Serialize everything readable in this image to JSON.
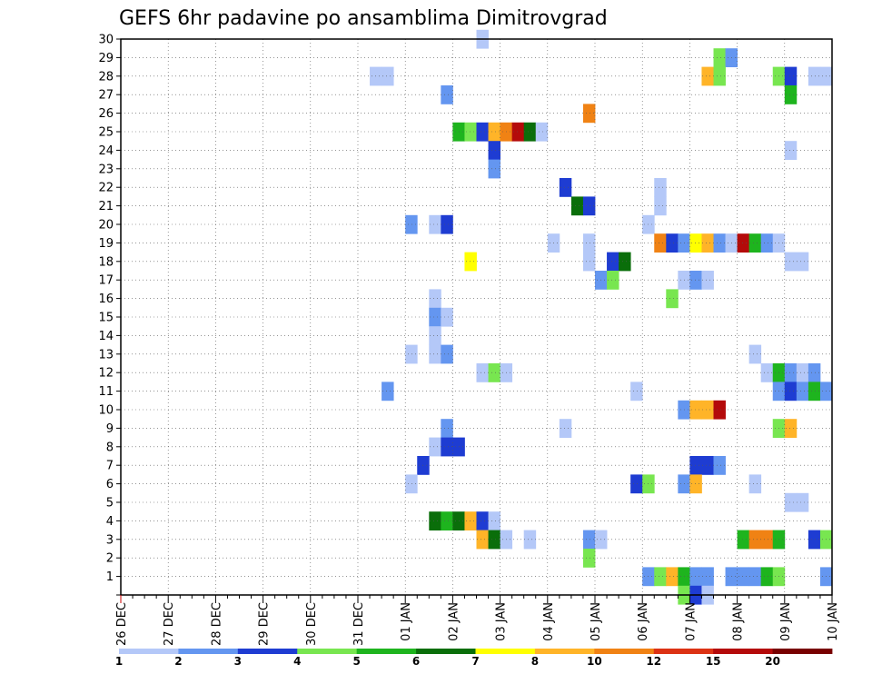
{
  "chart_data": {
    "type": "heatmap",
    "title": "GEFS 6hr padavine po ansamblima Dimitrovgrad",
    "xlabel": "",
    "ylabel": "",
    "x_tick_labels": [
      "26 DEC",
      "27 DEC",
      "28 DEC",
      "29 DEC",
      "30 DEC",
      "31 DEC",
      "01 JAN",
      "02 JAN",
      "03 JAN",
      "04 JAN",
      "05 JAN",
      "06 JAN",
      "07 JAN",
      "08 JAN",
      "09 JAN",
      "10 JAN"
    ],
    "y_tick_labels": [
      "1",
      "2",
      "3",
      "4",
      "5",
      "6",
      "7",
      "8",
      "9",
      "10",
      "11",
      "12",
      "13",
      "14",
      "15",
      "16",
      "17",
      "18",
      "19",
      "20",
      "21",
      "22",
      "23",
      "24",
      "25",
      "26",
      "27",
      "28",
      "29",
      "30"
    ],
    "xlim_steps": [
      0,
      60
    ],
    "ylim": [
      0,
      30
    ],
    "grid": true,
    "colorbar": {
      "labels": [
        "1",
        "2",
        "3",
        "4",
        "5",
        "6",
        "7",
        "8",
        "10",
        "12",
        "15",
        "20"
      ],
      "colors": [
        "#b4c8f8",
        "#6496f0",
        "#1e3cd2",
        "#78e650",
        "#1eb41e",
        "#0a6e0a",
        "#ffff00",
        "#ffb428",
        "#f08214",
        "#dc3214",
        "#b40a0a",
        "#780000"
      ]
    },
    "cells_format": "[ensemble_member, time_step_6h, color_class_index]",
    "cells": [
      [
        30,
        30,
        0
      ],
      [
        29,
        50,
        3
      ],
      [
        29,
        51,
        1
      ],
      [
        28,
        21,
        0
      ],
      [
        28,
        22,
        0
      ],
      [
        28,
        49,
        7
      ],
      [
        28,
        50,
        3
      ],
      [
        28,
        55,
        3
      ],
      [
        28,
        56,
        2
      ],
      [
        28,
        58,
        0
      ],
      [
        28,
        59,
        0
      ],
      [
        27,
        27,
        1
      ],
      [
        27,
        56,
        4
      ],
      [
        26,
        39,
        8
      ],
      [
        25,
        28,
        4
      ],
      [
        25,
        29,
        3
      ],
      [
        25,
        30,
        2
      ],
      [
        25,
        31,
        7
      ],
      [
        25,
        32,
        8
      ],
      [
        25,
        33,
        10
      ],
      [
        25,
        34,
        5
      ],
      [
        25,
        35,
        0
      ],
      [
        24,
        31,
        2
      ],
      [
        24,
        56,
        0
      ],
      [
        23,
        31,
        1
      ],
      [
        22,
        37,
        2
      ],
      [
        22,
        45,
        0
      ],
      [
        21,
        38,
        5
      ],
      [
        21,
        39,
        2
      ],
      [
        21,
        45,
        0
      ],
      [
        20,
        24,
        1
      ],
      [
        20,
        26,
        0
      ],
      [
        20,
        27,
        2
      ],
      [
        20,
        44,
        0
      ],
      [
        19,
        36,
        0
      ],
      [
        19,
        39,
        0
      ],
      [
        19,
        45,
        8
      ],
      [
        19,
        46,
        2
      ],
      [
        19,
        47,
        1
      ],
      [
        19,
        48,
        6
      ],
      [
        19,
        49,
        7
      ],
      [
        19,
        50,
        1
      ],
      [
        19,
        51,
        0
      ],
      [
        19,
        52,
        10
      ],
      [
        19,
        53,
        4
      ],
      [
        19,
        54,
        1
      ],
      [
        19,
        55,
        0
      ],
      [
        18,
        29,
        6
      ],
      [
        18,
        39,
        0
      ],
      [
        18,
        41,
        2
      ],
      [
        18,
        42,
        5
      ],
      [
        18,
        56,
        0
      ],
      [
        18,
        57,
        0
      ],
      [
        17,
        40,
        1
      ],
      [
        17,
        41,
        3
      ],
      [
        17,
        47,
        0
      ],
      [
        17,
        48,
        1
      ],
      [
        17,
        49,
        0
      ],
      [
        16,
        26,
        0
      ],
      [
        16,
        46,
        3
      ],
      [
        15,
        26,
        1
      ],
      [
        15,
        27,
        0
      ],
      [
        14,
        26,
        0
      ],
      [
        13,
        24,
        0
      ],
      [
        13,
        26,
        0
      ],
      [
        13,
        27,
        1
      ],
      [
        13,
        53,
        0
      ],
      [
        12,
        30,
        0
      ],
      [
        12,
        31,
        3
      ],
      [
        12,
        32,
        0
      ],
      [
        12,
        54,
        0
      ],
      [
        12,
        55,
        4
      ],
      [
        12,
        56,
        1
      ],
      [
        12,
        57,
        0
      ],
      [
        12,
        58,
        1
      ],
      [
        11,
        22,
        1
      ],
      [
        11,
        43,
        0
      ],
      [
        11,
        55,
        1
      ],
      [
        11,
        56,
        2
      ],
      [
        11,
        57,
        1
      ],
      [
        11,
        58,
        4
      ],
      [
        11,
        59,
        1
      ],
      [
        10,
        47,
        1
      ],
      [
        10,
        48,
        7
      ],
      [
        10,
        49,
        7
      ],
      [
        10,
        50,
        10
      ],
      [
        9,
        27,
        1
      ],
      [
        9,
        37,
        0
      ],
      [
        9,
        55,
        3
      ],
      [
        9,
        56,
        7
      ],
      [
        8,
        26,
        0
      ],
      [
        8,
        27,
        2
      ],
      [
        8,
        28,
        2
      ],
      [
        7,
        25,
        2
      ],
      [
        7,
        48,
        2
      ],
      [
        7,
        49,
        2
      ],
      [
        7,
        50,
        1
      ],
      [
        6,
        24,
        0
      ],
      [
        6,
        43,
        2
      ],
      [
        6,
        44,
        3
      ],
      [
        6,
        47,
        1
      ],
      [
        6,
        48,
        7
      ],
      [
        6,
        53,
        0
      ],
      [
        5,
        56,
        0
      ],
      [
        5,
        57,
        0
      ],
      [
        4,
        26,
        5
      ],
      [
        4,
        27,
        4
      ],
      [
        4,
        28,
        5
      ],
      [
        4,
        29,
        7
      ],
      [
        4,
        30,
        2
      ],
      [
        4,
        31,
        0
      ],
      [
        3,
        30,
        7
      ],
      [
        3,
        31,
        5
      ],
      [
        3,
        32,
        0
      ],
      [
        3,
        34,
        0
      ],
      [
        3,
        39,
        1
      ],
      [
        3,
        40,
        0
      ],
      [
        3,
        52,
        4
      ],
      [
        3,
        53,
        8
      ],
      [
        3,
        54,
        8
      ],
      [
        3,
        55,
        4
      ],
      [
        3,
        58,
        2
      ],
      [
        3,
        59,
        3
      ],
      [
        2,
        39,
        3
      ],
      [
        1,
        44,
        1
      ],
      [
        1,
        45,
        3
      ],
      [
        1,
        46,
        7
      ],
      [
        1,
        47,
        4
      ],
      [
        1,
        48,
        1
      ],
      [
        1,
        49,
        1
      ],
      [
        1,
        51,
        1
      ],
      [
        1,
        52,
        1
      ],
      [
        1,
        53,
        1
      ],
      [
        1,
        54,
        4
      ],
      [
        1,
        55,
        3
      ],
      [
        1,
        59,
        1
      ],
      [
        0,
        47,
        3
      ],
      [
        0,
        48,
        2
      ],
      [
        0,
        49,
        0
      ]
    ]
  }
}
